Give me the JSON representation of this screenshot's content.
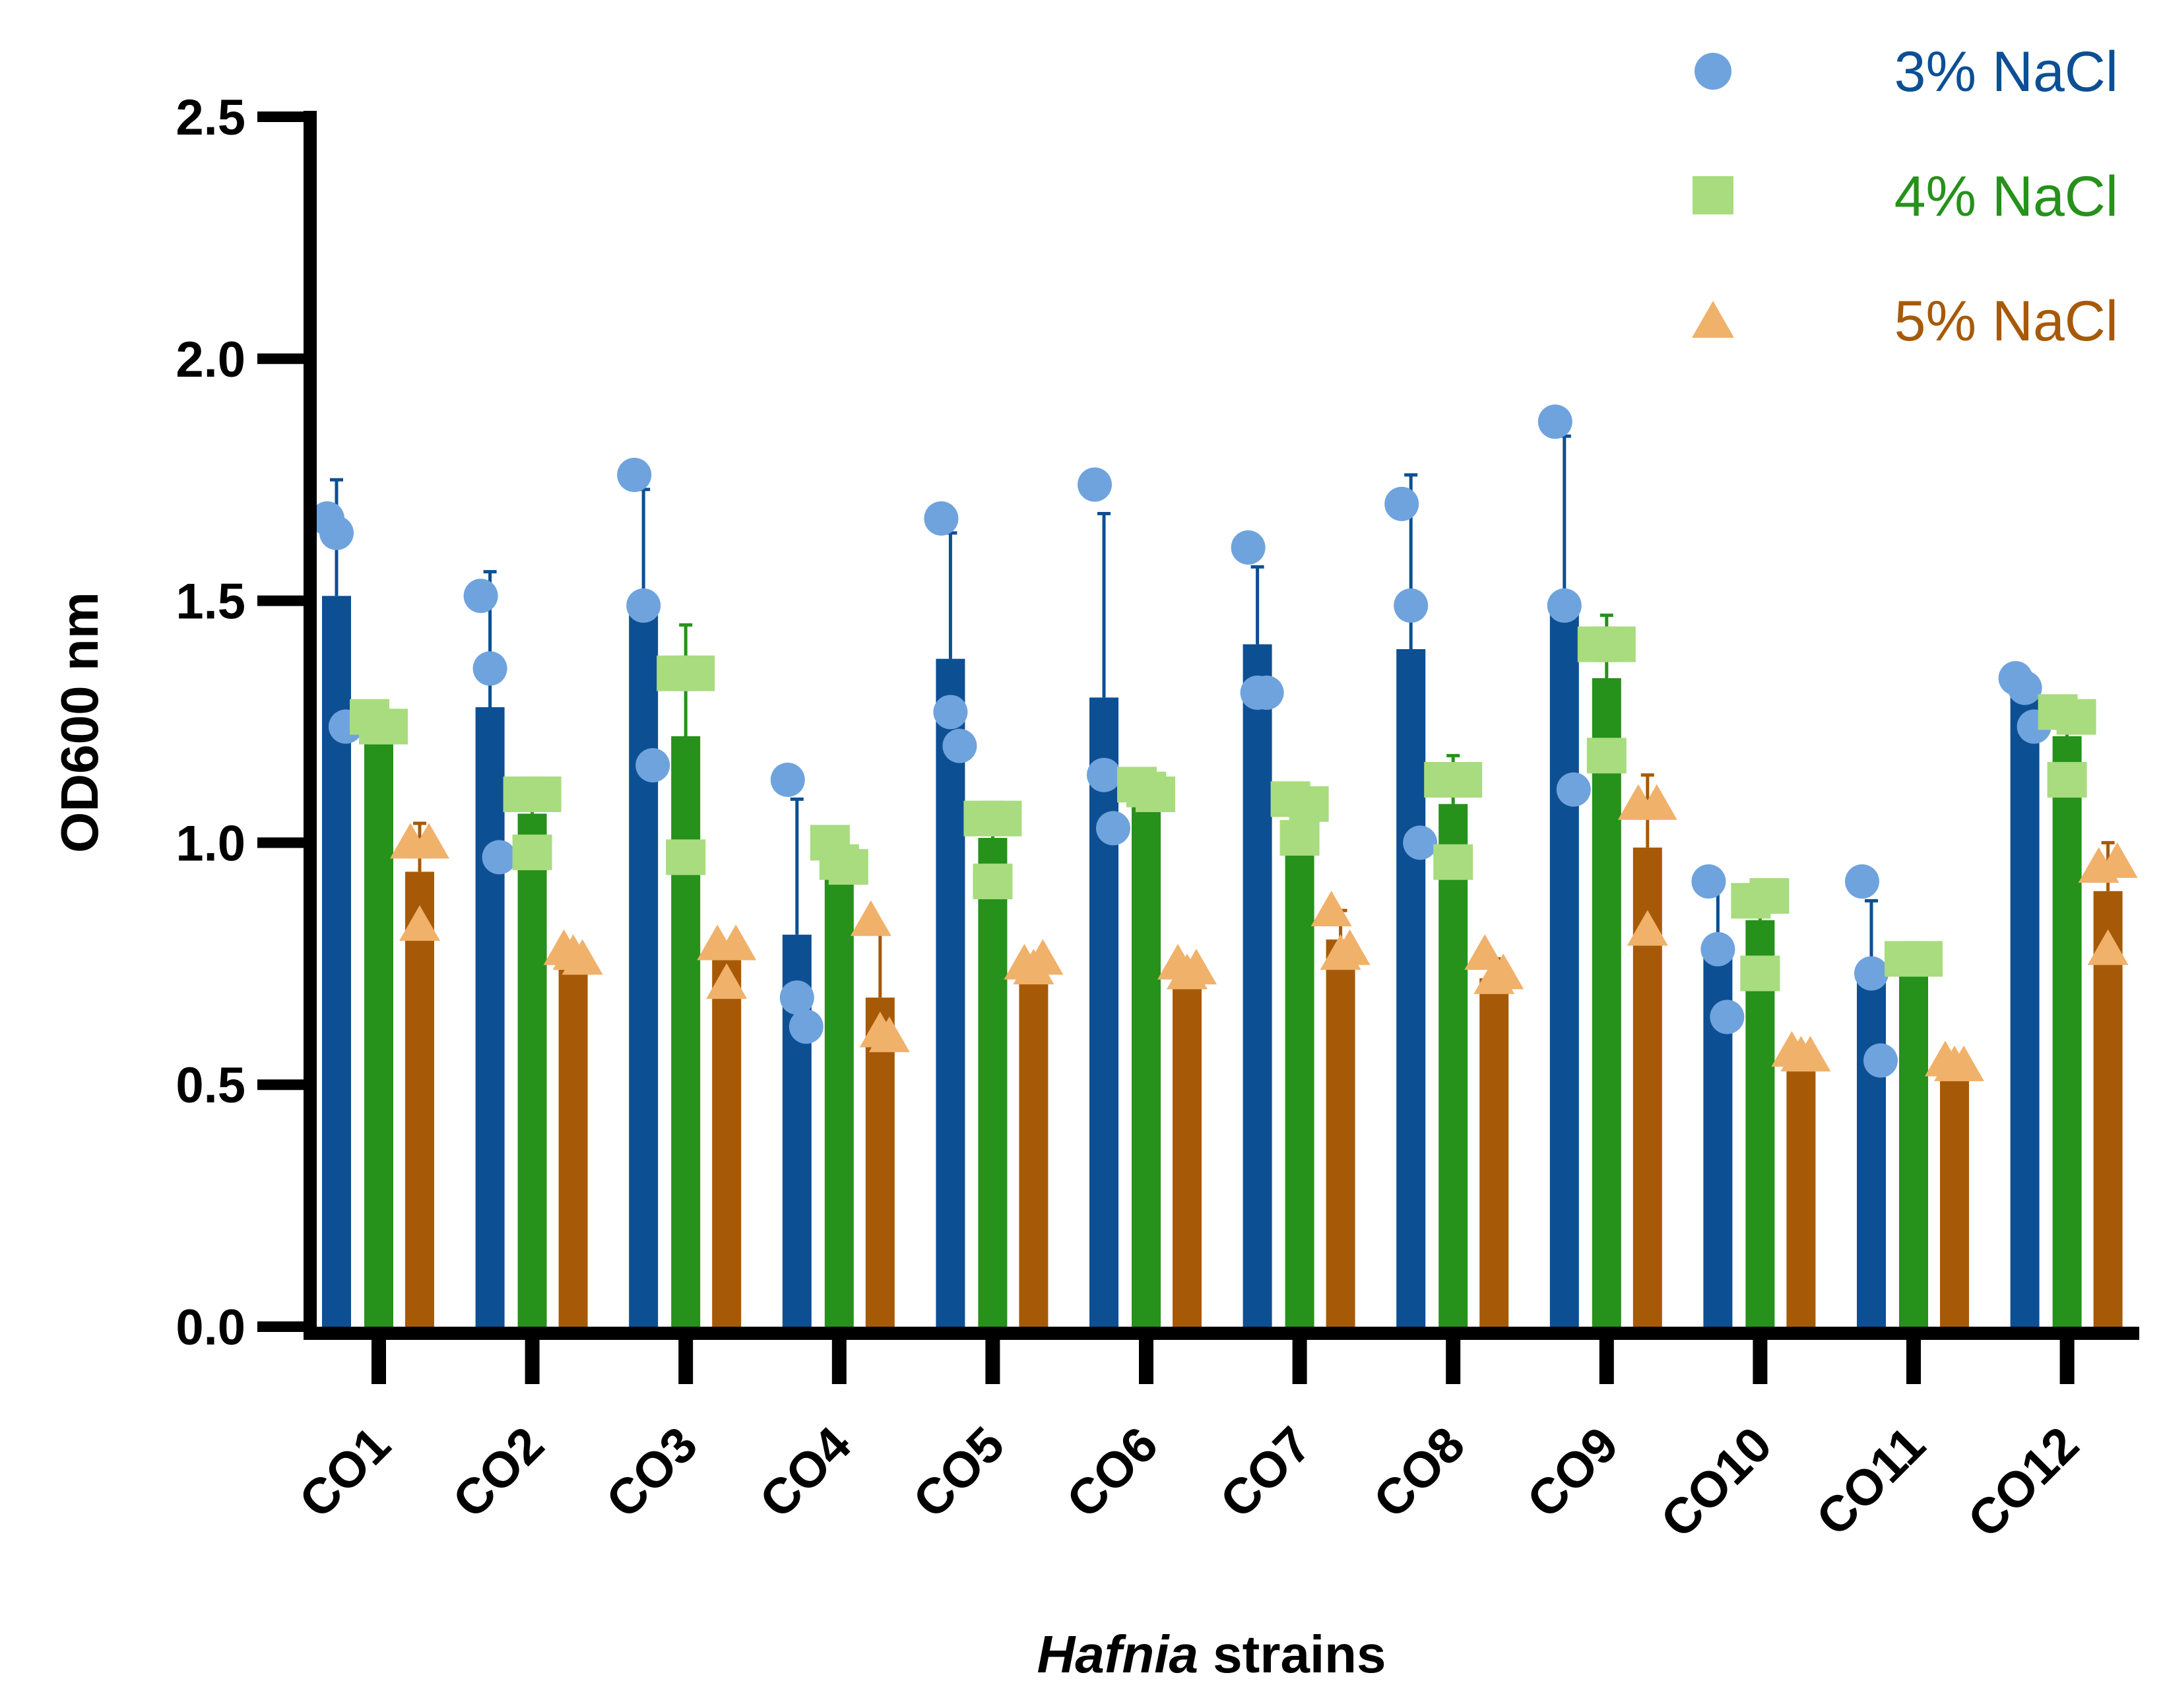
{
  "chart_data": {
    "type": "bar",
    "title": "",
    "xlabel_italic": "Hafnia",
    "xlabel_rest": " strains",
    "ylabel": "OD600 nm",
    "ylim": [
      0,
      2.5
    ],
    "yticks": [
      0.0,
      0.5,
      1.0,
      1.5,
      2.0,
      2.5
    ],
    "ytick_labels": [
      "0.0",
      "0.5",
      "1.0",
      "1.5",
      "2.0",
      "2.5"
    ],
    "categories": [
      "CO1",
      "CO2",
      "CO3",
      "CO4",
      "CO5",
      "CO6",
      "CO7",
      "CO8",
      "CO9",
      "CO10",
      "CO11",
      "CO12"
    ],
    "legend_position": "top-right",
    "series": [
      {
        "name": "3% NaCl",
        "marker": "circle",
        "bar_color": "#0d4f93",
        "marker_color": "#6fa3dd",
        "text_color": "#0d4f93",
        "values": [
          1.51,
          1.28,
          1.47,
          0.81,
          1.38,
          1.3,
          1.41,
          1.4,
          1.49,
          0.78,
          0.73,
          1.31
        ],
        "errors": [
          0.24,
          0.28,
          0.26,
          0.28,
          0.26,
          0.38,
          0.16,
          0.36,
          0.35,
          0.15,
          0.15,
          0.04
        ],
        "points": [
          [
            1.67,
            1.64,
            1.24
          ],
          [
            1.51,
            1.36,
            0.97
          ],
          [
            1.76,
            1.49,
            1.16
          ],
          [
            1.13,
            0.68,
            0.62
          ],
          [
            1.67,
            1.27,
            1.2
          ],
          [
            1.74,
            1.14,
            1.03
          ],
          [
            1.61,
            1.31,
            1.31
          ],
          [
            1.7,
            1.49,
            1.0
          ],
          [
            1.87,
            1.49,
            1.11
          ],
          [
            0.92,
            0.78,
            0.64
          ],
          [
            0.92,
            0.73,
            0.55
          ],
          [
            1.34,
            1.32,
            1.24
          ]
        ]
      },
      {
        "name": "4% NaCl",
        "marker": "square",
        "bar_color": "#26911b",
        "marker_color": "#a8dc7e",
        "text_color": "#26911b",
        "values": [
          1.25,
          1.06,
          1.22,
          0.97,
          1.01,
          1.11,
          1.04,
          1.08,
          1.34,
          0.84,
          0.76,
          1.22
        ],
        "errors": [
          0.02,
          0.06,
          0.23,
          0.03,
          0.07,
          0.02,
          0.05,
          0.1,
          0.13,
          0.08,
          0.01,
          0.06
        ],
        "points": [
          [
            1.26,
            1.24,
            1.24
          ],
          [
            1.1,
            0.98,
            1.1
          ],
          [
            1.35,
            0.97,
            1.35
          ],
          [
            1.0,
            0.96,
            0.95
          ],
          [
            1.05,
            0.92,
            1.05
          ],
          [
            1.12,
            1.11,
            1.1
          ],
          [
            1.09,
            1.01,
            1.08
          ],
          [
            1.13,
            0.96,
            1.13
          ],
          [
            1.41,
            1.18,
            1.41
          ],
          [
            0.88,
            0.73,
            0.89
          ],
          [
            0.76,
            0.76,
            0.76
          ],
          [
            1.27,
            1.13,
            1.26
          ]
        ]
      },
      {
        "name": "5% NaCl",
        "marker": "triangle",
        "bar_color": "#a65a08",
        "marker_color": "#f0b16b",
        "text_color": "#a65a08",
        "values": [
          0.94,
          0.77,
          0.77,
          0.68,
          0.74,
          0.73,
          0.8,
          0.72,
          0.99,
          0.55,
          0.53,
          0.9
        ],
        "errors": [
          0.1,
          0.01,
          0.02,
          0.14,
          0.01,
          0.02,
          0.06,
          0.04,
          0.15,
          0.01,
          0.01,
          0.1
        ],
        "points": [
          [
            1.0,
            0.83,
            1.0
          ],
          [
            0.78,
            0.77,
            0.76
          ],
          [
            0.79,
            0.71,
            0.79
          ],
          [
            0.84,
            0.61,
            0.6
          ],
          [
            0.75,
            0.74,
            0.76
          ],
          [
            0.75,
            0.73,
            0.74
          ],
          [
            0.86,
            0.77,
            0.78
          ],
          [
            0.77,
            0.72,
            0.73
          ],
          [
            1.08,
            0.82,
            1.08
          ],
          [
            0.57,
            0.56,
            0.56
          ],
          [
            0.55,
            0.54,
            0.54
          ],
          [
            0.95,
            0.78,
            0.96
          ]
        ]
      }
    ]
  }
}
